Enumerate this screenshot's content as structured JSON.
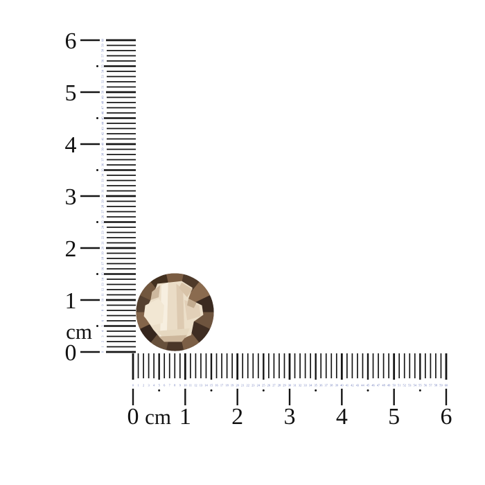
{
  "image": {
    "background": "#ffffff",
    "subject": "round faceted smoky gemstone photographed against two centimeter rulers"
  },
  "mm_scale": {
    "start": 0,
    "end": 60,
    "numbers": [
      "0",
      "1",
      "2",
      "3",
      "4",
      "5",
      "6",
      "7",
      "8",
      "9",
      "10",
      "11",
      "12",
      "13",
      "14",
      "15",
      "16",
      "17",
      "18",
      "19",
      "20",
      "21",
      "22",
      "23",
      "24",
      "25",
      "26",
      "27",
      "28",
      "29",
      "30",
      "31",
      "32",
      "33",
      "34",
      "35",
      "36",
      "37",
      "38",
      "39",
      "40",
      "41",
      "42",
      "43",
      "44",
      "45",
      "46",
      "47",
      "48",
      "49",
      "50",
      "51",
      "52",
      "53",
      "54",
      "55",
      "56",
      "57",
      "58",
      "59",
      "60"
    ]
  },
  "vertical_ruler": {
    "unit_label": "cm",
    "cm_labels": [
      "0",
      "1",
      "2",
      "3",
      "4",
      "5",
      "6"
    ],
    "tick_color": "#151515",
    "mm_number_color": "#6b79bb",
    "label_color": "#111111"
  },
  "horizontal_ruler": {
    "unit_label": "cm",
    "cm_labels": [
      "0",
      "1",
      "2",
      "3",
      "4",
      "5",
      "6"
    ],
    "tick_color": "#151515",
    "mm_number_color": "#6b79bb",
    "label_color": "#111111"
  },
  "gemstone": {
    "description": "round checkerboard-cut smoky quartz, light cream table with brown rim",
    "wedge_colors": [
      "#6e543e",
      "#3f2d22",
      "#7c5f46",
      "#4a3628",
      "#67503b",
      "#35261d",
      "#83654a",
      "#55402f",
      "#72573e",
      "#42301f",
      "#7a5c42",
      "#4e3a2a",
      "#8a6b4f",
      "#3a2a20"
    ],
    "table_colors": [
      "#ecdfc9",
      "#f7efe0",
      "#eadcc6",
      "#ddcab1",
      "#f2e7d3",
      "#e2d0b8",
      "#d8c3a8",
      "#e6d8c0",
      "#cdb79c",
      "#cdb89e",
      "#c3ac90"
    ]
  }
}
